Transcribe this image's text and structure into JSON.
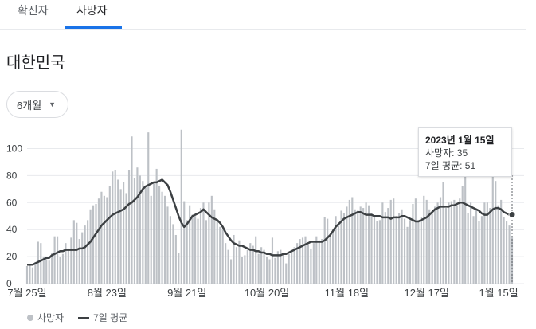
{
  "tabs": [
    {
      "label": "확진자"
    },
    {
      "label": "사망자"
    }
  ],
  "region_title": "대한민국",
  "period_select": {
    "label": "6개월"
  },
  "tooltip": {
    "date": "2023년 1월 15일",
    "deaths_text": "사망자: 35",
    "avg_text": "7일 평균: 51"
  },
  "legend": {
    "deaths": "사망자",
    "avg": "7일 평균"
  },
  "colors": {
    "bar": "#bdc1c6",
    "line": "#3c4043",
    "accent": "#1a73e8",
    "grid": "#e8eaed"
  },
  "chart_data": {
    "type": "bar",
    "x_tick_labels": [
      "7월 25일",
      "8월 23일",
      "9월 21일",
      "10월 20일",
      "11월 18일",
      "12월 17일",
      "1월 15일"
    ],
    "y_ticks": [
      0,
      20,
      40,
      60,
      80,
      100
    ],
    "ylim": [
      0,
      114
    ],
    "grid": true,
    "series": [
      {
        "name": "사망자",
        "type": "bar",
        "values": [
          13,
          14,
          12,
          16,
          31,
          30,
          20,
          18,
          17,
          23,
          35,
          35,
          20,
          22,
          30,
          26,
          34,
          47,
          45,
          33,
          38,
          43,
          47,
          55,
          58,
          59,
          63,
          68,
          65,
          64,
          72,
          83,
          84,
          77,
          70,
          75,
          67,
          84,
          109,
          78,
          86,
          80,
          76,
          71,
          112,
          65,
          74,
          85,
          72,
          68,
          65,
          57,
          50,
          44,
          36,
          23,
          114,
          61,
          47,
          58,
          51,
          50,
          48,
          56,
          60,
          47,
          60,
          65,
          55,
          46,
          42,
          40,
          30,
          25,
          18,
          36,
          27,
          32,
          20,
          21,
          25,
          30,
          28,
          35,
          22,
          27,
          25,
          20,
          18,
          34,
          19,
          24,
          25,
          22,
          15,
          22,
          24,
          27,
          30,
          33,
          34,
          35,
          29,
          26,
          30,
          35,
          32,
          33,
          49,
          48,
          36,
          40,
          50,
          43,
          54,
          52,
          57,
          62,
          64,
          55,
          54,
          57,
          56,
          60,
          58,
          52,
          50,
          46,
          47,
          60,
          53,
          56,
          62,
          63,
          50,
          52,
          55,
          48,
          42,
          47,
          59,
          63,
          47,
          49,
          65,
          62,
          55,
          52,
          57,
          60,
          64,
          75,
          56,
          60,
          61,
          62,
          58,
          63,
          72,
          80,
          52,
          60,
          50,
          55,
          46,
          50,
          60,
          60,
          56,
          80,
          76,
          58,
          62,
          49,
          46,
          43,
          35
        ],
        "color": "#bdc1c6"
      },
      {
        "name": "7일 평균",
        "type": "line",
        "values": [
          14,
          14,
          14,
          15,
          16,
          17,
          18,
          19,
          19,
          21,
          22,
          23,
          24,
          24,
          25,
          25,
          25,
          25,
          25,
          26,
          26,
          27,
          29,
          31,
          34,
          37,
          40,
          43,
          45,
          47,
          49,
          51,
          52,
          53,
          54,
          55,
          57,
          59,
          60,
          62,
          64,
          67,
          70,
          72,
          73,
          74,
          75,
          75,
          76,
          77,
          75,
          73,
          68,
          62,
          56,
          50,
          45,
          42,
          44,
          47,
          50,
          51,
          52,
          53,
          55,
          53,
          51,
          49,
          48,
          47,
          45,
          42,
          38,
          35,
          32,
          30,
          29,
          28,
          28,
          27,
          26,
          25,
          25,
          24,
          24,
          23,
          23,
          22,
          22,
          21,
          21,
          21,
          21,
          22,
          22,
          23,
          24,
          25,
          26,
          27,
          28,
          29,
          30,
          31,
          31,
          31,
          31,
          31,
          32,
          34,
          36,
          39,
          42,
          44,
          46,
          48,
          49,
          50,
          51,
          52,
          53,
          53,
          52,
          51,
          51,
          51,
          50,
          50,
          50,
          49,
          49,
          49,
          48,
          49,
          49,
          49,
          50,
          50,
          49,
          48,
          47,
          46,
          46,
          47,
          48,
          49,
          51,
          53,
          55,
          56,
          57,
          57,
          57,
          57,
          58,
          58,
          59,
          60,
          60,
          59,
          58,
          57,
          56,
          55,
          54,
          52,
          51,
          51,
          53,
          55,
          56,
          56,
          55,
          53,
          52,
          51,
          51
        ]
      }
    ]
  }
}
